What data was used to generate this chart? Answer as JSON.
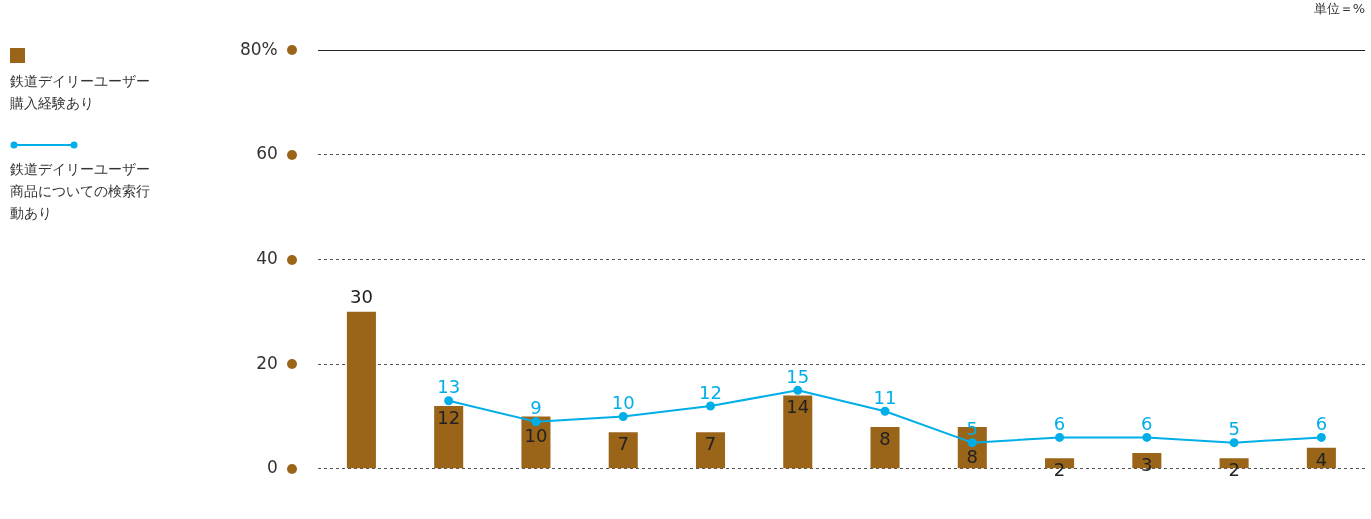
{
  "chart_data": {
    "type": "bar",
    "categories": [
      null,
      null,
      null,
      null,
      null,
      null,
      null,
      null,
      null,
      null,
      null,
      null
    ],
    "series": [
      {
        "name": "鉄道デイリーユーザー購入経験あり",
        "color": "#9a6519",
        "values": [
          30,
          12,
          10,
          7,
          7,
          14,
          8,
          8,
          2,
          3,
          2,
          4
        ]
      },
      {
        "name": "鉄道デイリーユーザー商品についての検索行動あり",
        "color": "#00aee8",
        "type": "line",
        "marker": "circle",
        "values": [
          null,
          13,
          9,
          10,
          12,
          15,
          11,
          5,
          6,
          6,
          5,
          6
        ]
      }
    ],
    "ylim": [
      0,
      80
    ],
    "yticks": [
      0,
      20,
      40,
      60,
      {
        "value": 80,
        "label": "80%"
      }
    ],
    "grid": "y",
    "legend": "left",
    "tick_labels": "y",
    "data_labels": true,
    "annotations": [
      "単位＝%"
    ]
  }
}
